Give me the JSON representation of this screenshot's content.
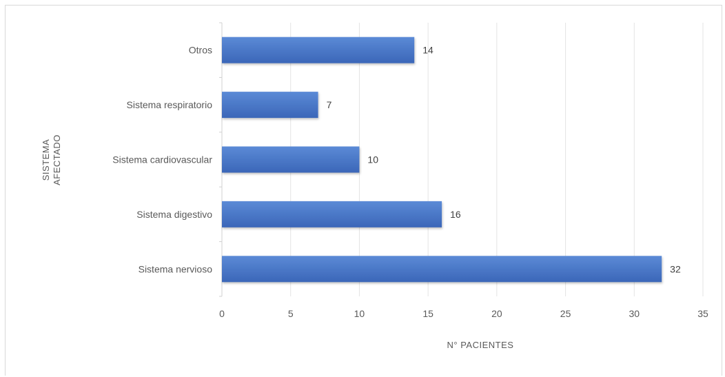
{
  "chart_data": {
    "type": "bar",
    "orientation": "horizontal",
    "categories": [
      "Otros",
      "Sistema respiratorio",
      "Sistema cardiovascular",
      "Sistema digestivo",
      "Sistema nervioso"
    ],
    "values": [
      14,
      7,
      10,
      16,
      32
    ],
    "xlabel": "N° PACIENTES",
    "ylabel_lines": [
      "SISTEMA",
      "AFECTADO"
    ],
    "xlim": [
      0,
      35
    ],
    "x_ticks": [
      0,
      5,
      10,
      15,
      20,
      25,
      30,
      35
    ],
    "grid": "vertical",
    "legend": "none",
    "data_labels": true,
    "bar_color": "#4472c4",
    "bar_color_dark": "#3a64b0"
  }
}
